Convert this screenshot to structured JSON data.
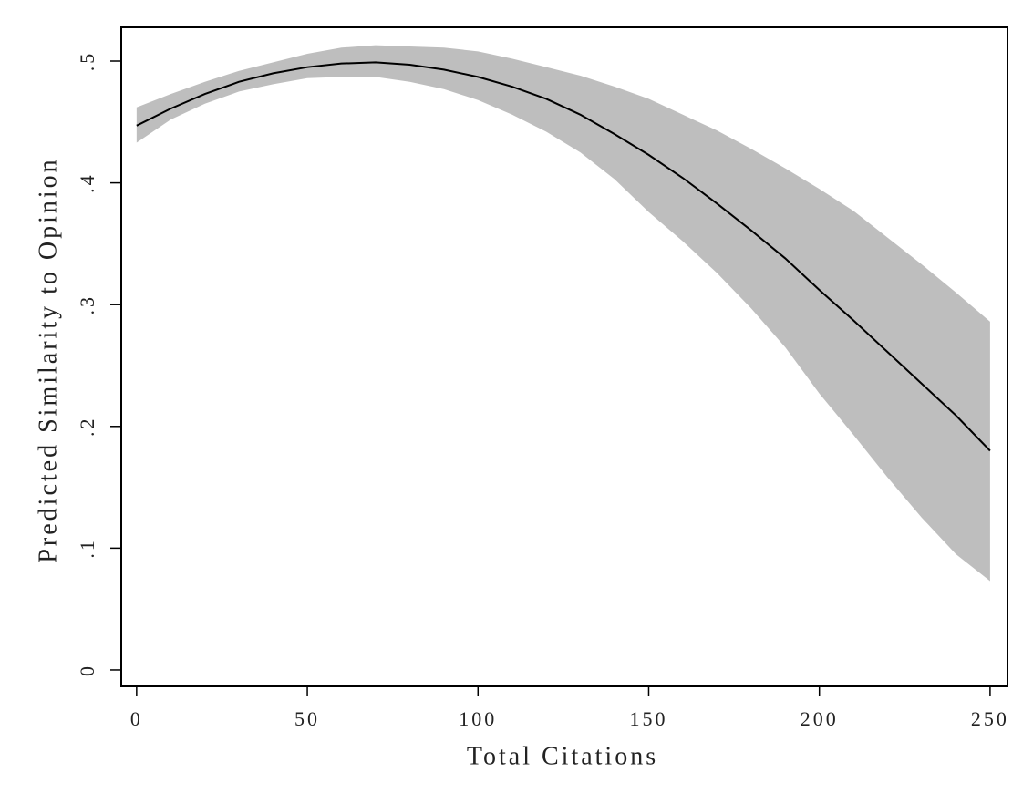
{
  "chart_data": {
    "type": "line",
    "xlabel": "Total Citations",
    "ylabel": "Predicted Similarity to Opinion",
    "x": [
      0,
      10,
      20,
      30,
      40,
      50,
      60,
      70,
      80,
      90,
      100,
      110,
      120,
      130,
      140,
      150,
      160,
      170,
      180,
      190,
      200,
      210,
      220,
      230,
      240,
      250
    ],
    "values": [
      0.447,
      0.461,
      0.473,
      0.483,
      0.49,
      0.495,
      0.498,
      0.499,
      0.497,
      0.493,
      0.487,
      0.479,
      0.469,
      0.456,
      0.44,
      0.423,
      0.404,
      0.383,
      0.361,
      0.338,
      0.312,
      0.287,
      0.261,
      0.235,
      0.209,
      0.18
    ],
    "upper": [
      0.462,
      0.473,
      0.483,
      0.492,
      0.499,
      0.506,
      0.511,
      0.513,
      0.512,
      0.511,
      0.508,
      0.502,
      0.495,
      0.488,
      0.479,
      0.469,
      0.456,
      0.443,
      0.428,
      0.412,
      0.395,
      0.377,
      0.355,
      0.333,
      0.31,
      0.286
    ],
    "lower": [
      0.433,
      0.452,
      0.465,
      0.475,
      0.481,
      0.486,
      0.487,
      0.487,
      0.483,
      0.477,
      0.468,
      0.456,
      0.442,
      0.425,
      0.403,
      0.376,
      0.352,
      0.326,
      0.297,
      0.265,
      0.227,
      0.193,
      0.158,
      0.125,
      0.095,
      0.073
    ],
    "color": "#000000",
    "band_color": "#bebebe",
    "xlim": [
      -4.5,
      255.1
    ],
    "ylim": [
      -0.0135,
      0.5277
    ],
    "xticks": [
      0,
      50,
      100,
      150,
      200,
      250
    ],
    "yticks": [
      0,
      {
        "value": 0.1,
        "label": ".1"
      },
      {
        "value": 0.2,
        "label": ".2"
      },
      {
        "value": 0.3,
        "label": ".3"
      },
      {
        "value": 0.4,
        "label": ".4"
      },
      {
        "value": 0.5,
        "label": ".5"
      }
    ]
  }
}
